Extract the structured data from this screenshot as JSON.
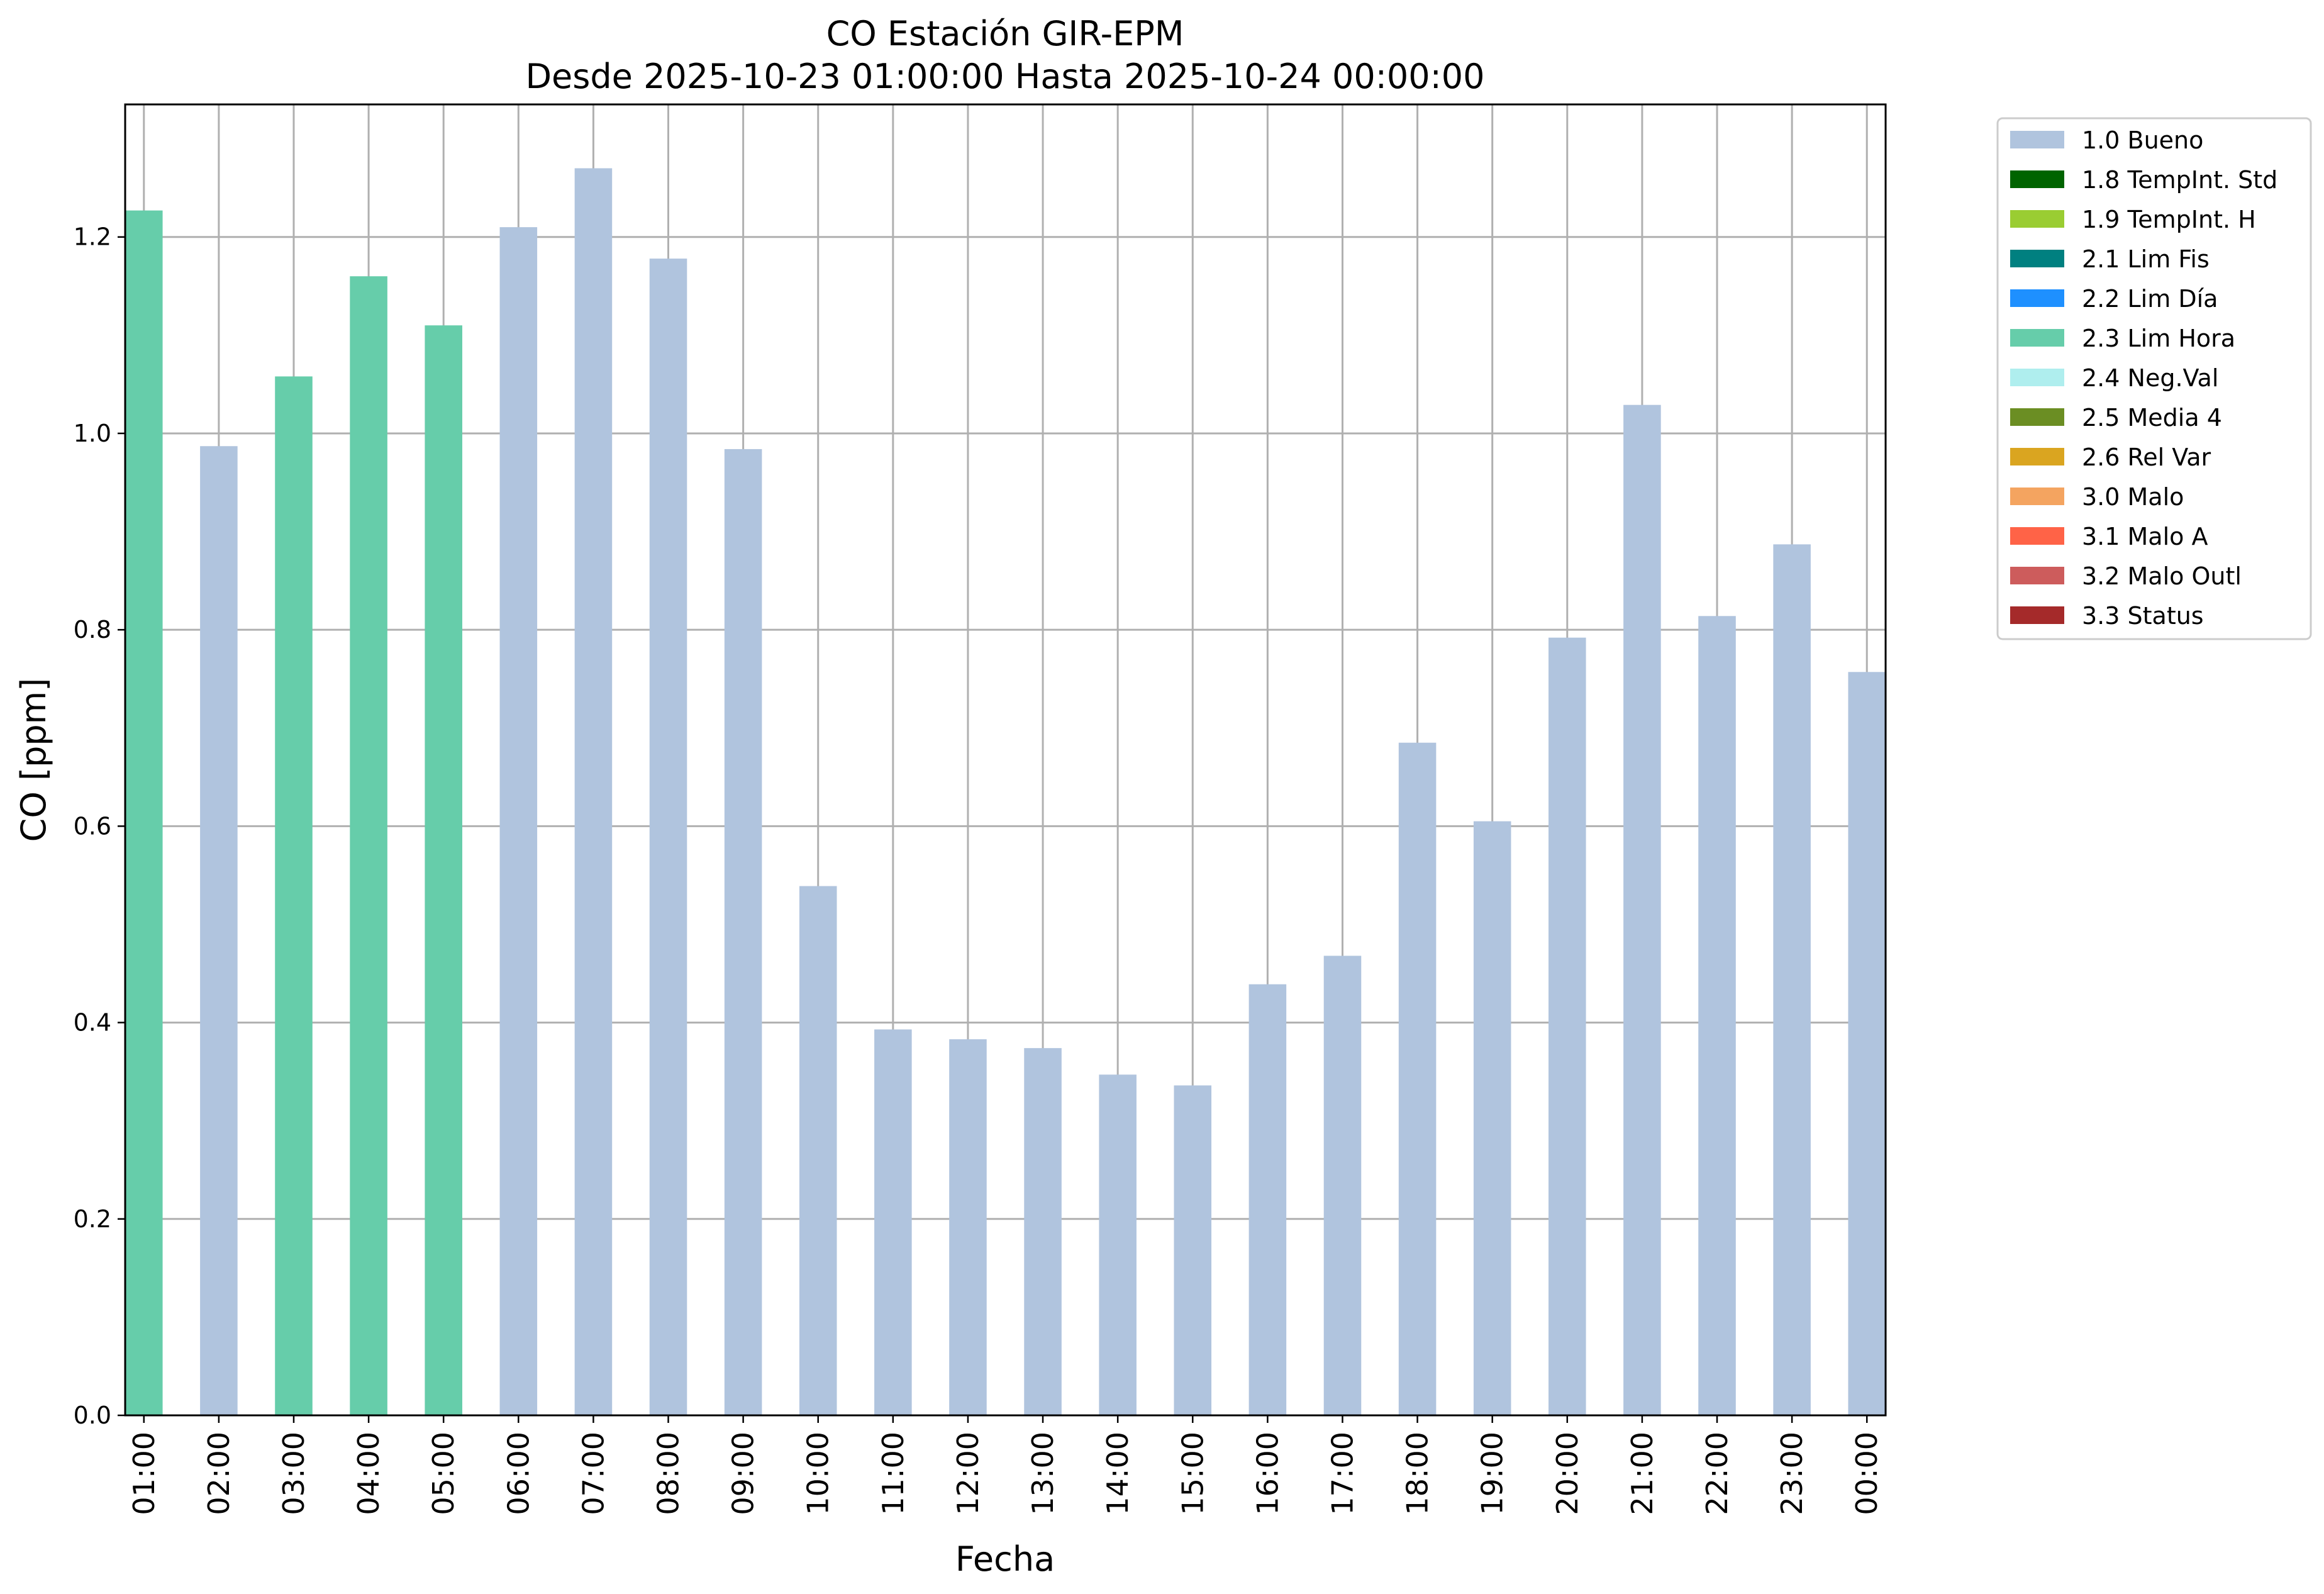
{
  "chart_data": {
    "type": "bar",
    "title": "CO Estación GIR-EPM",
    "subtitle": "Desde 2025-10-23 01:00:00 Hasta 2025-10-24 00:00:00",
    "xlabel": "Fecha",
    "ylabel": "CO [ppm]",
    "ylim": [
      0,
      1.335
    ],
    "yticks": [
      "0.0",
      "0.2",
      "0.4",
      "0.6",
      "0.8",
      "1.0",
      "1.2"
    ],
    "ytick_values": [
      0.0,
      0.2,
      0.4,
      0.6,
      0.8,
      1.0,
      1.2
    ],
    "grid": true,
    "legend_position": "outside-right",
    "categories": [
      "01:00",
      "02:00",
      "03:00",
      "04:00",
      "05:00",
      "06:00",
      "07:00",
      "08:00",
      "09:00",
      "10:00",
      "11:00",
      "12:00",
      "13:00",
      "14:00",
      "15:00",
      "16:00",
      "17:00",
      "18:00",
      "19:00",
      "20:00",
      "21:00",
      "22:00",
      "23:00",
      "00:00"
    ],
    "values": [
      1.227,
      0.987,
      1.058,
      1.16,
      1.11,
      1.21,
      1.27,
      1.178,
      0.984,
      0.539,
      0.393,
      0.383,
      0.374,
      0.347,
      0.336,
      0.439,
      0.468,
      0.685,
      0.605,
      0.792,
      1.029,
      0.814,
      0.887,
      0.757
    ],
    "flags": [
      "2.3 Lim Hora",
      "1.0 Bueno",
      "2.3 Lim Hora",
      "2.3 Lim Hora",
      "2.3 Lim Hora",
      "1.0 Bueno",
      "1.0 Bueno",
      "1.0 Bueno",
      "1.0 Bueno",
      "1.0 Bueno",
      "1.0 Bueno",
      "1.0 Bueno",
      "1.0 Bueno",
      "1.0 Bueno",
      "1.0 Bueno",
      "1.0 Bueno",
      "1.0 Bueno",
      "1.0 Bueno",
      "1.0 Bueno",
      "1.0 Bueno",
      "1.0 Bueno",
      "1.0 Bueno",
      "1.0 Bueno",
      "1.0 Bueno"
    ],
    "legend": [
      {
        "label": "1.0 Bueno",
        "color": "#b0c4de"
      },
      {
        "label": "1.8 TempInt. Std",
        "color": "#006400"
      },
      {
        "label": "1.9 TempInt. H",
        "color": "#9acd32"
      },
      {
        "label": "2.1 Lim Fis",
        "color": "#008080"
      },
      {
        "label": "2.2 Lim Día",
        "color": "#1e90ff"
      },
      {
        "label": "2.3 Lim Hora",
        "color": "#66cdaa"
      },
      {
        "label": "2.4 Neg.Val",
        "color": "#afeeee"
      },
      {
        "label": "2.5 Media 4",
        "color": "#6b8e23"
      },
      {
        "label": "2.6 Rel Var",
        "color": "#daa520"
      },
      {
        "label": "3.0 Malo",
        "color": "#f4a460"
      },
      {
        "label": "3.1 Malo A",
        "color": "#ff6347"
      },
      {
        "label": "3.2 Malo Outl",
        "color": "#cd5c5c"
      },
      {
        "label": "3.3 Status",
        "color": "#a52a2a"
      }
    ]
  }
}
